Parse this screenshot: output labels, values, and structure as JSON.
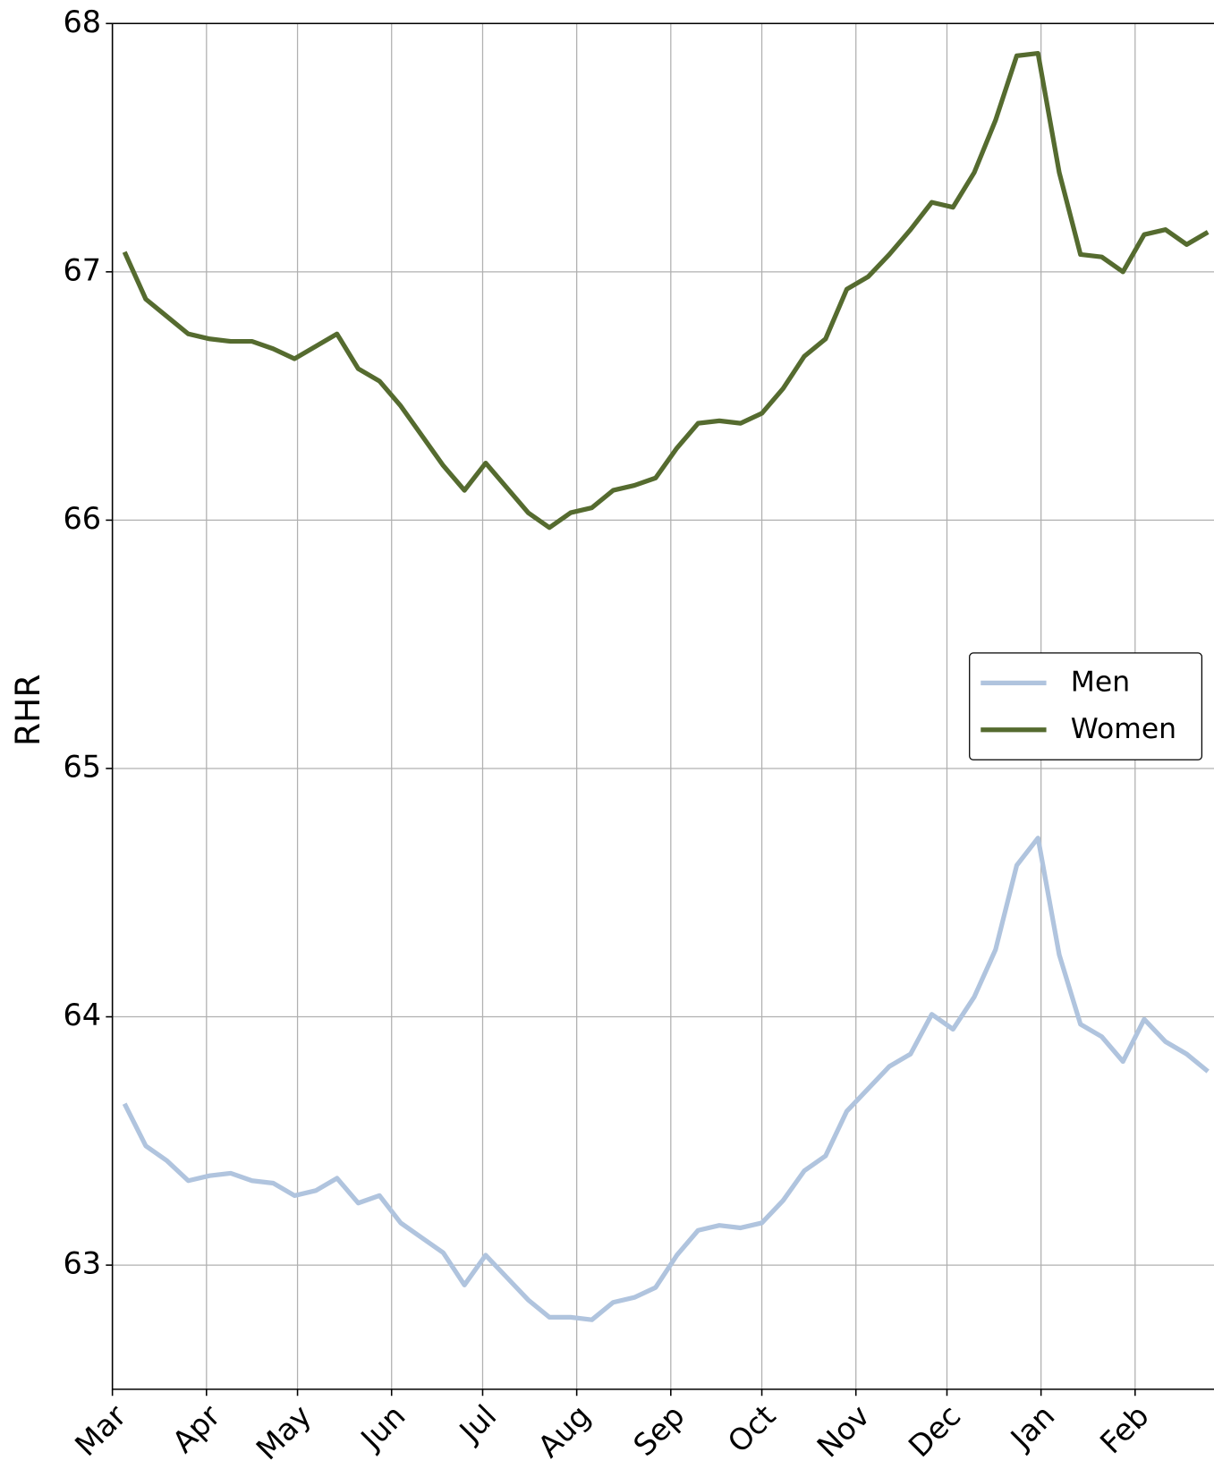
{
  "chart_data": {
    "type": "line",
    "y_label": "RHR",
    "x": [
      4,
      11,
      18,
      25,
      32,
      39,
      46,
      53,
      60,
      67,
      74,
      81,
      88,
      95,
      102,
      109,
      116,
      123,
      130,
      137,
      144,
      151,
      158,
      165,
      172,
      179,
      186,
      193,
      200,
      207,
      214,
      221,
      228,
      235,
      242,
      249,
      256,
      263,
      270,
      277,
      284,
      291,
      298,
      305,
      312,
      319,
      326,
      333,
      340,
      347,
      354,
      361
    ],
    "series": [
      {
        "name": "Men",
        "color": "#b0c4de",
        "values": [
          63.65,
          63.48,
          63.42,
          63.34,
          63.36,
          63.37,
          63.34,
          63.33,
          63.28,
          63.3,
          63.35,
          63.25,
          63.28,
          63.17,
          63.11,
          63.05,
          62.92,
          63.04,
          62.95,
          62.86,
          62.79,
          62.79,
          62.78,
          62.85,
          62.87,
          62.91,
          63.04,
          63.14,
          63.16,
          63.15,
          63.17,
          63.26,
          63.38,
          63.44,
          63.62,
          63.71,
          63.8,
          63.85,
          64.01,
          63.95,
          64.08,
          64.27,
          64.61,
          64.72,
          64.25,
          63.97,
          63.92,
          63.82,
          63.99,
          63.9,
          63.85,
          63.78
        ]
      },
      {
        "name": "Women",
        "color": "#556b2f",
        "values": [
          67.08,
          66.89,
          66.82,
          66.75,
          66.73,
          66.72,
          66.72,
          66.69,
          66.65,
          66.7,
          66.75,
          66.61,
          66.56,
          66.46,
          66.34,
          66.22,
          66.12,
          66.23,
          66.13,
          66.03,
          65.97,
          66.03,
          66.05,
          66.12,
          66.14,
          66.17,
          66.29,
          66.39,
          66.4,
          66.39,
          66.43,
          66.53,
          66.66,
          66.73,
          66.93,
          66.98,
          67.07,
          67.17,
          67.28,
          67.26,
          67.4,
          67.61,
          67.87,
          67.88,
          67.4,
          67.07,
          67.06,
          67.0,
          67.15,
          67.17,
          67.11,
          67.16
        ]
      }
    ],
    "xlim": [
      0,
      363
    ],
    "xticks": [
      {
        "value": 0,
        "label": "Mar"
      },
      {
        "value": 31,
        "label": "Apr"
      },
      {
        "value": 61,
        "label": "May"
      },
      {
        "value": 92,
        "label": "Jun"
      },
      {
        "value": 122,
        "label": "Jul"
      },
      {
        "value": 153,
        "label": "Aug"
      },
      {
        "value": 184,
        "label": "Sep"
      },
      {
        "value": 214,
        "label": "Oct"
      },
      {
        "value": 245,
        "label": "Nov"
      },
      {
        "value": 275,
        "label": "Dec"
      },
      {
        "value": 306,
        "label": "Jan"
      },
      {
        "value": 337,
        "label": "Feb"
      }
    ],
    "ylim": [
      62.5,
      68
    ],
    "yticks": [
      63,
      64,
      65,
      66,
      67,
      68
    ],
    "grid": true,
    "legend": "center right"
  }
}
